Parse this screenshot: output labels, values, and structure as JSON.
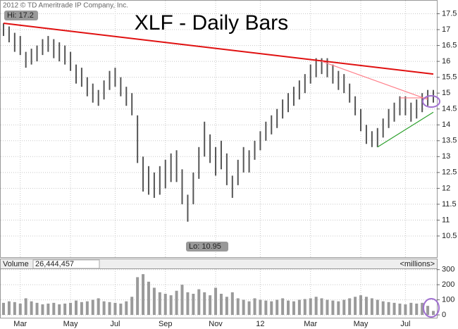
{
  "chart_data": {
    "type": "ohlc",
    "title": "XLF - Daily Bars",
    "copyright": "2012 © TD Ameritrade IP Company, Inc.",
    "high_label": "Hi: 17.2",
    "low_label": "Lo: 10.95",
    "volume_label": "Volume",
    "volume_last": "26,444,457",
    "volume_units": "<millions>",
    "categories": [
      null,
      null,
      null,
      "Mar",
      null,
      null,
      null,
      null,
      null,
      null,
      null,
      null,
      "May",
      null,
      null,
      null,
      null,
      null,
      null,
      null,
      "Jul",
      null,
      null,
      null,
      null,
      null,
      null,
      null,
      null,
      "Sep",
      null,
      null,
      null,
      null,
      null,
      null,
      null,
      null,
      "Nov",
      null,
      null,
      null,
      null,
      null,
      null,
      null,
      "12",
      null,
      null,
      null,
      null,
      null,
      null,
      null,
      null,
      "Mar",
      null,
      null,
      null,
      null,
      null,
      null,
      null,
      null,
      "May",
      null,
      null,
      null,
      null,
      null,
      null,
      null,
      "Jul",
      null,
      null,
      null,
      null,
      null
    ],
    "high": [
      17.2,
      17.1,
      16.9,
      16.8,
      16.3,
      16.4,
      16.5,
      16.7,
      16.8,
      16.7,
      16.6,
      16.5,
      16.3,
      15.9,
      15.8,
      15.5,
      15.3,
      15.1,
      15.4,
      15.7,
      15.8,
      15.5,
      15.2,
      15.0,
      14.3,
      13.0,
      12.7,
      12.5,
      12.7,
      12.9,
      13.1,
      13.2,
      12.6,
      11.8,
      12.5,
      13.3,
      14.1,
      13.7,
      13.3,
      13.5,
      13.1,
      12.4,
      12.9,
      13.3,
      13.2,
      13.5,
      13.8,
      14.1,
      14.3,
      14.5,
      14.8,
      15.0,
      15.2,
      15.4,
      15.6,
      15.9,
      16.1,
      16.1,
      16.1,
      15.9,
      15.7,
      15.6,
      15.3,
      14.9,
      14.5,
      14.0,
      13.8,
      13.9,
      14.2,
      14.5,
      14.7,
      14.9,
      14.9,
      14.7,
      14.8,
      15.0,
      15.1,
      15.1
    ],
    "low": [
      16.8,
      16.6,
      16.3,
      16.2,
      15.8,
      15.9,
      16.0,
      16.2,
      16.3,
      16.1,
      16.0,
      15.9,
      15.7,
      15.3,
      15.2,
      14.9,
      14.7,
      14.6,
      14.8,
      15.1,
      15.2,
      14.9,
      14.6,
      14.3,
      12.8,
      11.9,
      11.8,
      11.7,
      11.8,
      12.0,
      12.2,
      12.2,
      11.5,
      10.95,
      11.5,
      12.3,
      13.0,
      12.8,
      12.4,
      12.6,
      12.1,
      11.7,
      12.1,
      12.5,
      12.5,
      12.9,
      13.2,
      13.5,
      13.7,
      13.9,
      14.2,
      14.4,
      14.6,
      14.8,
      15.0,
      15.3,
      15.5,
      15.6,
      15.5,
      15.3,
      15.1,
      15.0,
      14.7,
      14.3,
      13.8,
      13.4,
      13.3,
      13.3,
      13.6,
      13.9,
      14.1,
      14.3,
      14.3,
      14.1,
      14.2,
      14.4,
      14.6,
      14.7
    ],
    "volume": [
      80,
      90,
      85,
      75,
      110,
      90,
      80,
      70,
      75,
      80,
      70,
      75,
      80,
      95,
      85,
      90,
      100,
      110,
      90,
      85,
      80,
      75,
      90,
      120,
      250,
      270,
      220,
      180,
      150,
      140,
      130,
      160,
      200,
      150,
      140,
      170,
      150,
      130,
      180,
      140,
      120,
      150,
      110,
      100,
      90,
      110,
      100,
      95,
      90,
      100,
      110,
      95,
      90,
      100,
      105,
      110,
      120,
      110,
      100,
      95,
      90,
      100,
      110,
      120,
      130,
      120,
      110,
      100,
      90,
      85,
      80,
      75,
      70,
      80,
      75,
      80,
      60,
      26.444457
    ],
    "bar_color": "#555555",
    "volume_color": "#9a9a9a",
    "ylim": [
      9.9,
      17.8
    ],
    "yticks": [
      10.5,
      11,
      11.5,
      12,
      12.5,
      13,
      13.5,
      14,
      14.5,
      15,
      15.5,
      16,
      16.5,
      17,
      17.5
    ],
    "y2lim": [
      0,
      350
    ],
    "y2ticks": [
      0,
      100,
      200,
      300
    ],
    "grid": true,
    "trendlines": [
      {
        "color": "#e01010",
        "start": [
          0,
          17.2
        ],
        "end": [
          77,
          15.6
        ]
      },
      {
        "color": "#ff7f8a",
        "start": [
          57,
          16.0
        ],
        "end": [
          76,
          14.8
        ]
      },
      {
        "color": "#ff7f8a",
        "start": [
          71,
          14.85
        ],
        "end": [
          76,
          14.85
        ]
      },
      {
        "color": "#2ca02c",
        "start": [
          67,
          13.3
        ],
        "end": [
          77,
          14.4
        ]
      }
    ]
  }
}
